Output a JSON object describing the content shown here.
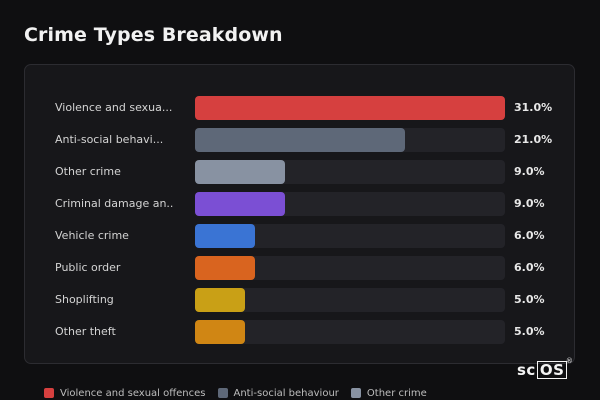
{
  "chart_data": {
    "type": "bar",
    "orientation": "horizontal",
    "title": "Crime Types Breakdown",
    "xlabel": "",
    "ylabel": "",
    "xlim": [
      0,
      31
    ],
    "grid": false,
    "value_suffix": "%",
    "categories": [
      "Violence and sexual offences",
      "Anti-social behaviour",
      "Other crime",
      "Criminal damage and arson",
      "Vehicle crime",
      "Public order",
      "Shoplifting",
      "Other theft"
    ],
    "display_labels": [
      "Violence and sexua...",
      "Anti-social behavi...",
      "Other crime",
      "Criminal damage an...",
      "Vehicle crime",
      "Public order",
      "Shoplifting",
      "Other theft"
    ],
    "values": [
      31.0,
      21.0,
      9.0,
      9.0,
      6.0,
      6.0,
      5.0,
      5.0
    ],
    "value_labels": [
      "31.0%",
      "21.0%",
      "9.0%",
      "9.0%",
      "6.0%",
      "6.0%",
      "5.0%",
      "5.0%"
    ],
    "colors": [
      "#d6403f",
      "#5e6878",
      "#8892a2",
      "#7b4fd4",
      "#3a74d4",
      "#d9641f",
      "#c9a016",
      "#d08614"
    ],
    "legend_position": "bottom-left",
    "legend": [
      {
        "label": "Violence and sexual offences",
        "color": "#d6403f"
      },
      {
        "label": "Anti-social behaviour",
        "color": "#5e6878"
      },
      {
        "label": "Other crime",
        "color": "#8892a2"
      }
    ]
  },
  "logo": {
    "prefix": "sc",
    "boxed": "OS",
    "mark": "®"
  }
}
